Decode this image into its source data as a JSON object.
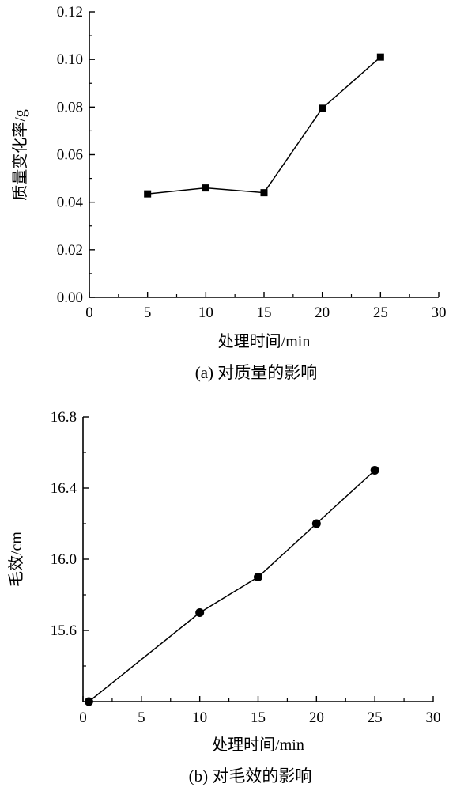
{
  "chart_data": [
    {
      "type": "line",
      "caption": "(a) 对质量的影响",
      "xlabel": "处理时间/min",
      "ylabel": "质量变化率/g",
      "xlim": [
        0,
        30
      ],
      "ylim": [
        0.0,
        0.12
      ],
      "x_ticks": [
        "0",
        "5",
        "10",
        "15",
        "20",
        "25",
        "30"
      ],
      "y_ticks": [
        "0.00",
        "0.02",
        "0.04",
        "0.06",
        "0.08",
        "0.10",
        "0.12"
      ],
      "marker": "square",
      "grid": false,
      "series": [
        {
          "x": [
            5,
            10,
            15,
            20,
            25
          ],
          "y": [
            0.0435,
            0.046,
            0.044,
            0.0795,
            0.101
          ]
        }
      ]
    },
    {
      "type": "line",
      "caption": "(b) 对毛效的影响",
      "xlabel": "处理时间/min",
      "ylabel": "毛效/cm",
      "xlim": [
        0,
        30
      ],
      "ylim": [
        15.2,
        16.8
      ],
      "x_ticks": [
        "0",
        "5",
        "10",
        "15",
        "20",
        "25",
        "30"
      ],
      "y_ticks": [
        "15.6",
        "16.0",
        "16.4",
        "16.8"
      ],
      "marker": "circle",
      "grid": false,
      "series": [
        {
          "x": [
            0.5,
            10,
            15,
            20,
            25
          ],
          "y": [
            15.2,
            15.7,
            15.9,
            16.2,
            16.5
          ]
        }
      ]
    }
  ]
}
